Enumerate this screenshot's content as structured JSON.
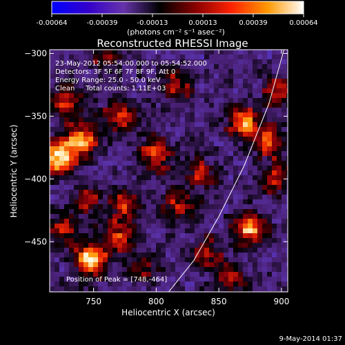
{
  "chart_data": {
    "type": "heatmap",
    "title": "Reconstructed RHESSI Image",
    "colorbar": {
      "ticks": [
        "-0.00064",
        "-0.00039",
        "-0.00013",
        "0.00013",
        "0.00039",
        "0.00064"
      ],
      "range": [
        -0.00064,
        0.00064
      ],
      "units_label": "(photons cm⁻² s⁻¹ asec⁻²)",
      "colormap": [
        "#0000ff",
        "#3300cc",
        "#6633aa",
        "#000000",
        "#880000",
        "#ff2200",
        "#ff9900",
        "#ffffff"
      ]
    },
    "info": {
      "time_range": "23-May-2012 05:54:00.000 to 05:54:52.000",
      "detectors": "Detectors: 3F 5F 6F 7F 8F 9F, Att 0",
      "energy": "Energy Range: 25.0 - 50.0 keV",
      "clean": "Clean     Total counts: 1.11E+03"
    },
    "peak_label": "Position of Peak = [748,-464]",
    "xlabel": "Heliocentric X (arcsec)",
    "ylabel": "Heliocentric Y (arcsec)",
    "xlim": [
      715,
      905
    ],
    "ylim": [
      -490,
      -297
    ],
    "xticks": [
      750,
      800,
      850,
      900
    ],
    "yticks": [
      -300,
      -350,
      -400,
      -450
    ],
    "sources": [
      {
        "x": 748,
        "y": -464,
        "v": 1.0
      },
      {
        "x": 722,
        "y": -383,
        "v": 0.95
      },
      {
        "x": 740,
        "y": -370,
        "v": 0.9
      },
      {
        "x": 770,
        "y": -350,
        "v": 0.6
      },
      {
        "x": 728,
        "y": -340,
        "v": 0.55
      },
      {
        "x": 800,
        "y": -380,
        "v": 0.7
      },
      {
        "x": 775,
        "y": -420,
        "v": 0.55
      },
      {
        "x": 770,
        "y": -445,
        "v": 0.6
      },
      {
        "x": 818,
        "y": -420,
        "v": 0.55
      },
      {
        "x": 870,
        "y": -355,
        "v": 0.8
      },
      {
        "x": 890,
        "y": -370,
        "v": 0.65
      },
      {
        "x": 875,
        "y": -440,
        "v": 0.85
      },
      {
        "x": 895,
        "y": -400,
        "v": 0.5
      },
      {
        "x": 898,
        "y": -330,
        "v": 0.55
      },
      {
        "x": 815,
        "y": -325,
        "v": 0.5
      },
      {
        "x": 760,
        "y": -300,
        "v": 0.45
      },
      {
        "x": 840,
        "y": -460,
        "v": 0.5
      },
      {
        "x": 860,
        "y": -480,
        "v": 0.45
      },
      {
        "x": 790,
        "y": -470,
        "v": 0.45
      },
      {
        "x": 835,
        "y": -395,
        "v": 0.45
      },
      {
        "x": 745,
        "y": -415,
        "v": 0.45
      },
      {
        "x": 725,
        "y": -440,
        "v": 0.5
      }
    ],
    "limb": [
      [
        810,
        -490
      ],
      [
        830,
        -465
      ],
      [
        850,
        -430
      ],
      [
        870,
        -390
      ],
      [
        890,
        -340
      ],
      [
        902,
        -297
      ]
    ]
  },
  "footer_date": "9-May-2014 01:37"
}
